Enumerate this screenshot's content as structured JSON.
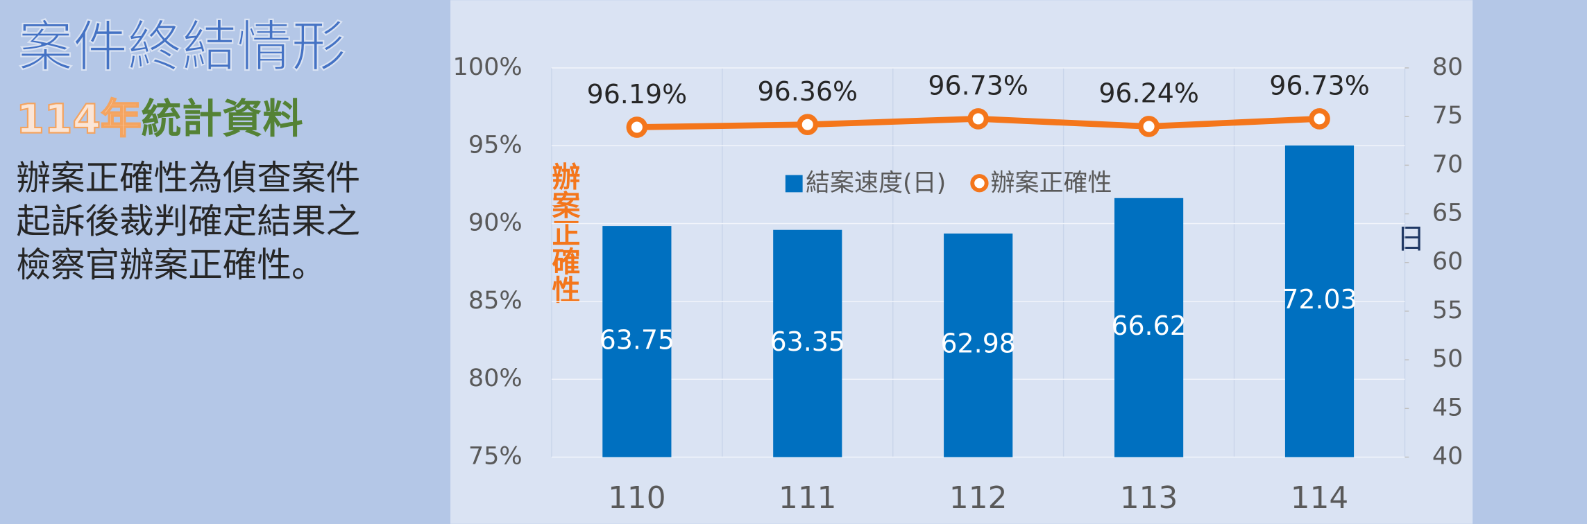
{
  "panel": {
    "title": "案件終結情形",
    "subtitle_year": "114年",
    "subtitle_rest": "統計資料",
    "description": [
      "辦案正確性為偵查案件",
      "起訴後裁判確定結果之",
      "檢察官辦案正確性。"
    ]
  },
  "chart_data": {
    "type": "combo",
    "categories": [
      "110",
      "111",
      "112",
      "113",
      "114"
    ],
    "series": [
      {
        "name": "結案速度(日)",
        "type": "bar",
        "color": "#0070c0",
        "axis": "y2",
        "values": [
          63.75,
          63.35,
          62.98,
          66.62,
          72.03
        ]
      },
      {
        "name": "辦案正確性",
        "type": "line",
        "color": "#f4761b",
        "values": [
          96.19,
          96.36,
          96.73,
          96.24,
          96.73
        ],
        "value_labels": [
          "96.19%",
          "96.36%",
          "96.73%",
          "96.24%",
          "96.73%"
        ]
      }
    ],
    "ylabel": "辦案正確性",
    "y2label": "日",
    "ylim": [
      75,
      100
    ],
    "yticks": [
      {
        "value": 75,
        "label": "75%"
      },
      {
        "value": 80,
        "label": "80%"
      },
      {
        "value": 85,
        "label": "85%"
      },
      {
        "value": 90,
        "label": "90%"
      },
      {
        "value": 95,
        "label": "95%"
      },
      {
        "value": 100,
        "label": "100%"
      }
    ],
    "y2lim": [
      40,
      80
    ],
    "y2ticks": [
      40,
      45,
      50,
      55,
      60,
      65,
      70,
      75,
      80
    ],
    "grid": true
  }
}
